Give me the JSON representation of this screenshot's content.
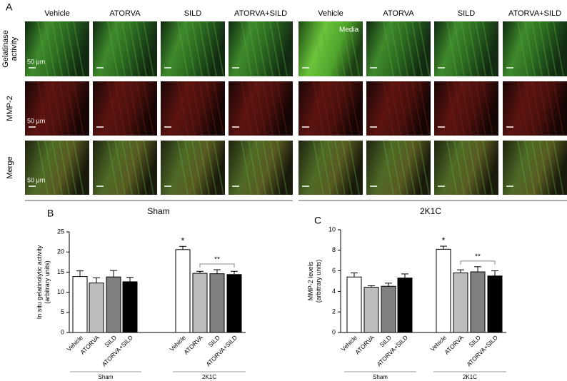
{
  "figure": {
    "panel_labels": [
      "A",
      "B",
      "C"
    ],
    "columns": [
      "Vehicle",
      "ATORVA",
      "SILD",
      "ATORVA+SILD",
      "Vehicle",
      "ATORVA",
      "SILD",
      "ATORVA+SILD"
    ],
    "rows": [
      [
        "Gelatinase",
        "activity"
      ],
      [
        "MMP-2"
      ],
      [
        "Merge"
      ]
    ],
    "scale_labels": [
      "50 μm",
      "50 μm",
      "50 μm"
    ],
    "region_label": "Media",
    "groups": [
      "Sham",
      "2K1C"
    ]
  },
  "chart_data": [
    {
      "type": "bar",
      "ylabel": [
        "In situ gelatinolytic activity",
        "(arbitrary units)"
      ],
      "categories": [
        "Vehicle",
        "ATORVA",
        "SILD",
        "ATORVA+SILD",
        "Vehicle",
        "ATORVA",
        "SILD",
        "ATORVA+SILD"
      ],
      "values": [
        13.9,
        12.3,
        13.8,
        12.6,
        20.6,
        14.7,
        14.6,
        14.4
      ],
      "errors": [
        1.4,
        1.3,
        1.6,
        1.1,
        0.8,
        0.5,
        1.0,
        0.8
      ],
      "colors": [
        "#ffffff",
        "#bdbdbd",
        "#808080",
        "#000000",
        "#ffffff",
        "#bdbdbd",
        "#808080",
        "#000000"
      ],
      "groups": [
        "Sham",
        "2K1C"
      ],
      "annotations": [
        "*",
        "**"
      ],
      "ylim": [
        0,
        25
      ],
      "yticks": [
        0,
        5,
        10,
        15,
        20,
        25
      ]
    },
    {
      "type": "bar",
      "ylabel": [
        "MMP-2 levels",
        "(arbitrary units)"
      ],
      "categories": [
        "Vehicle",
        "ATORVA",
        "SILD",
        "ATORVA+SILD",
        "Vehicle",
        "ATORVA",
        "SILD",
        "ATORVA+SILD"
      ],
      "values": [
        5.4,
        4.4,
        4.5,
        5.3,
        8.1,
        5.8,
        5.9,
        5.5
      ],
      "errors": [
        0.4,
        0.15,
        0.3,
        0.4,
        0.3,
        0.3,
        0.5,
        0.5
      ],
      "colors": [
        "#ffffff",
        "#bdbdbd",
        "#808080",
        "#000000",
        "#ffffff",
        "#bdbdbd",
        "#808080",
        "#000000"
      ],
      "groups": [
        "Sham",
        "2K1C"
      ],
      "annotations": [
        "*",
        "**"
      ],
      "ylim": [
        0,
        10
      ],
      "yticks": [
        0,
        2,
        4,
        6,
        8,
        10
      ]
    }
  ]
}
